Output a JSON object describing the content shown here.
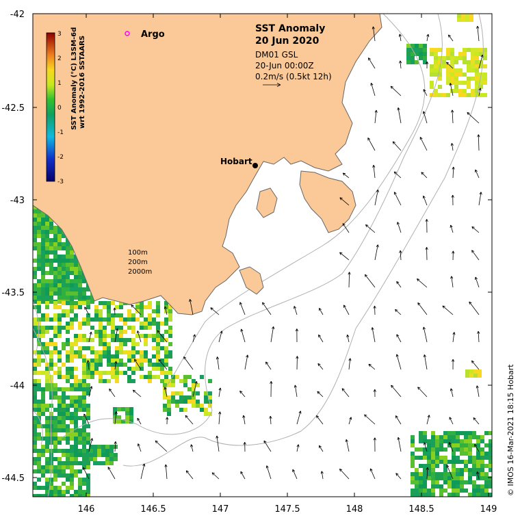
{
  "title": "SST Anomaly",
  "date": "20 Jun 2020",
  "info": [
    "DM01 GSL",
    "20-Jun 00:00Z",
    "0.2m/s (0.5kt 12h)"
  ],
  "argo_label": "Argo",
  "city": "Hobart",
  "isobaths": [
    "100m",
    "200m",
    "2000m"
  ],
  "colorbar": {
    "label_line1": "SST Anomaly (°C) L3SM-6d",
    "label_line2": "wrt 1992-2016 SSTAARS",
    "ticks": [
      "3",
      "2",
      "1",
      "0",
      "-1",
      "-2",
      "-3"
    ]
  },
  "x_ticks": [
    "146",
    "146.5",
    "147",
    "147.5",
    "148",
    "148.5",
    "149"
  ],
  "y_ticks": [
    "-42",
    "-42.5",
    "-43",
    "-43.5",
    "-44",
    "-44.5"
  ],
  "credit": "© IMOS 16-Mar-2021 18:15 Hobart",
  "colors": {
    "land": "#fbc998",
    "coast": "#666666",
    "isobath": "#b0b0b0",
    "argo": "#ff00ff"
  }
}
